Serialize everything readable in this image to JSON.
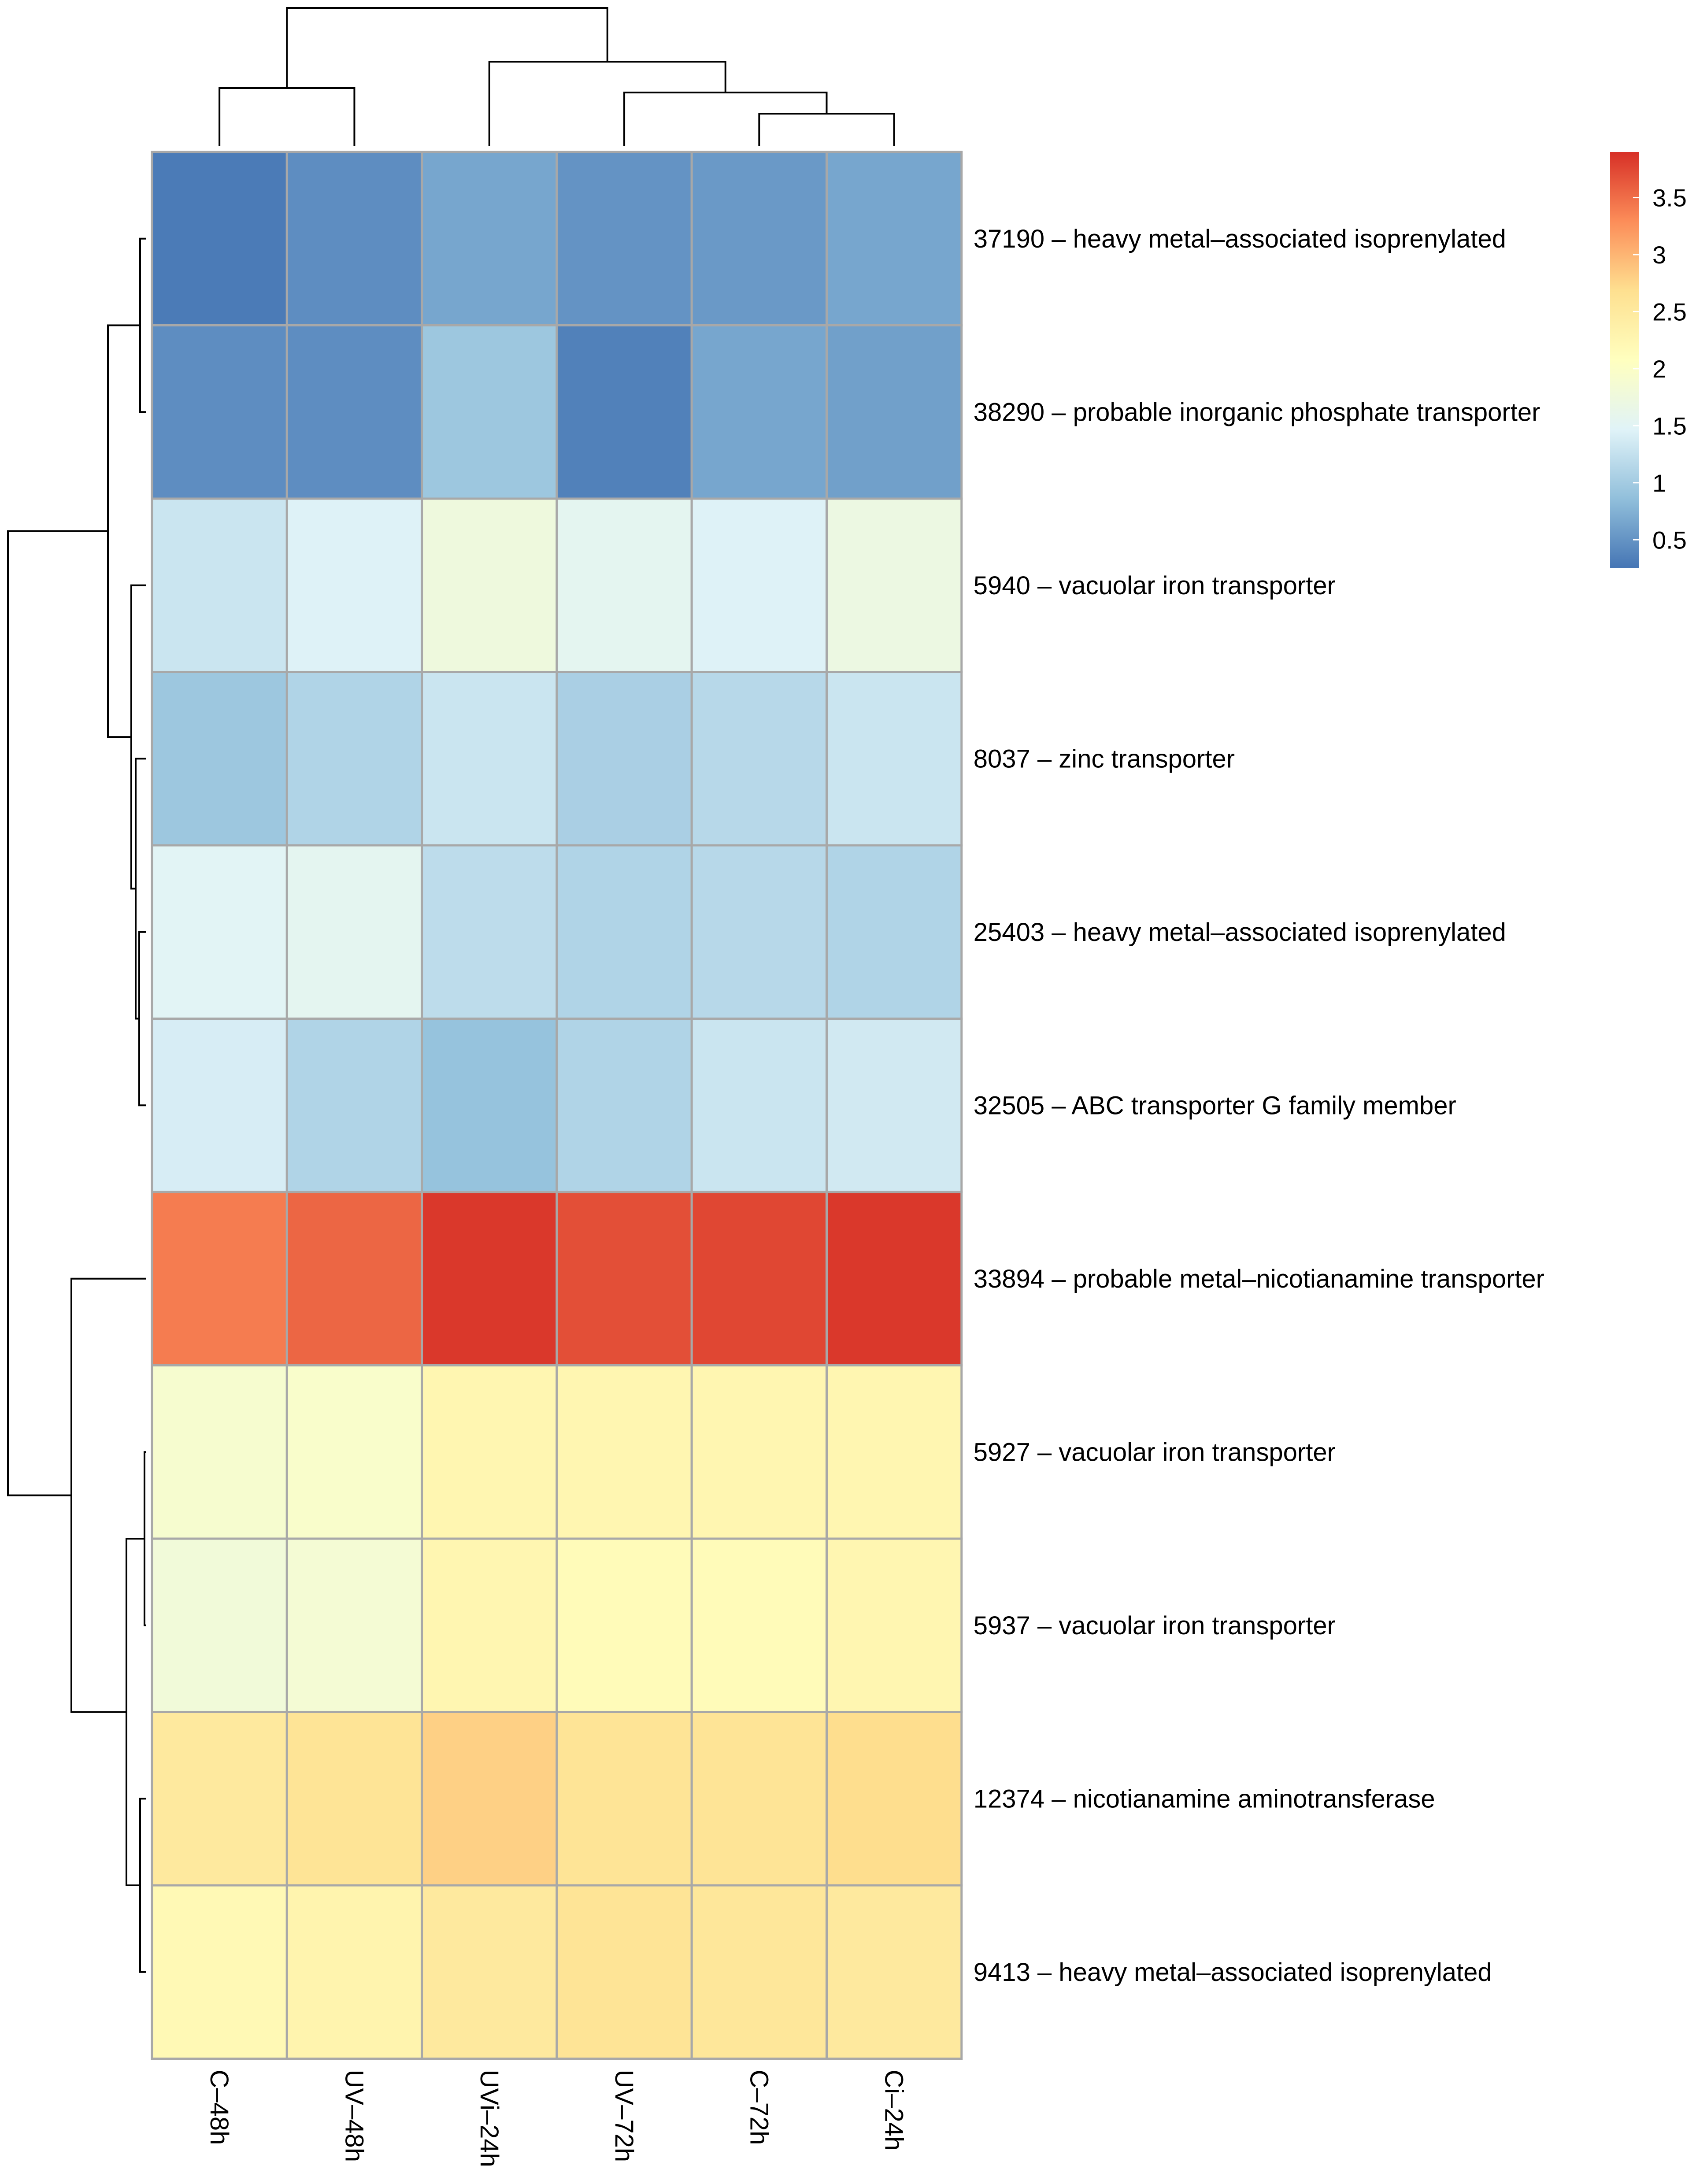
{
  "chart_data": {
    "type": "heatmap",
    "title": "",
    "columns": [
      "C–48h",
      "UV–48h",
      "UVi–24h",
      "UV–72h",
      "C–72h",
      "Ci–24h"
    ],
    "rows": [
      "37190 – heavy metal–associated isoprenylated",
      "38290 – probable inorganic phosphate transporter",
      "5940 – vacuolar iron transporter",
      "8037 – zinc transporter",
      "25403 – heavy metal–associated isoprenylated",
      "32505 – ABC transporter G family member",
      "33894 – probable metal–nicotianamine transporter",
      "5927 – vacuolar iron transporter",
      "5937 – vacuolar iron transporter",
      "12374 – nicotianamine aminotransferase",
      "9413 – heavy metal–associated isoprenylated"
    ],
    "values": [
      [
        0.3,
        0.45,
        0.65,
        0.5,
        0.55,
        0.65
      ],
      [
        0.45,
        0.45,
        0.95,
        0.35,
        0.65,
        0.6
      ],
      [
        1.3,
        1.45,
        1.75,
        1.55,
        1.45,
        1.7
      ],
      [
        0.95,
        1.1,
        1.3,
        1.05,
        1.15,
        1.3
      ],
      [
        1.5,
        1.55,
        1.2,
        1.1,
        1.15,
        1.1
      ],
      [
        1.4,
        1.1,
        0.9,
        1.1,
        1.3,
        1.35
      ],
      [
        3.4,
        3.55,
        3.85,
        3.7,
        3.75,
        3.85
      ],
      [
        1.9,
        1.95,
        2.25,
        2.25,
        2.25,
        2.25
      ],
      [
        1.8,
        1.85,
        2.25,
        2.15,
        2.15,
        2.25
      ],
      [
        2.5,
        2.6,
        2.8,
        2.6,
        2.6,
        2.7
      ],
      [
        2.2,
        2.3,
        2.5,
        2.6,
        2.55,
        2.5
      ]
    ],
    "row_dendrogram_order": [
      0,
      1,
      2,
      3,
      4,
      5,
      6,
      7,
      8,
      9,
      10
    ],
    "column_dendrogram_order": [
      0,
      1,
      2,
      3,
      4,
      5
    ],
    "colorscale": {
      "min": 0.25,
      "max": 3.9,
      "colors": [
        "#4575b4",
        "#91bfdb",
        "#e0f3f8",
        "#ffffbf",
        "#fee090",
        "#fc8d59",
        "#d73027"
      ],
      "ticks": [
        0.5,
        1,
        1.5,
        2,
        2.5,
        3,
        3.5
      ],
      "tick_labels": [
        "0.5",
        "1",
        "1.5",
        "2",
        "2.5",
        "3",
        "3.5"
      ]
    },
    "grid_color": "#a8a8a8",
    "legend_position": "top-right"
  }
}
